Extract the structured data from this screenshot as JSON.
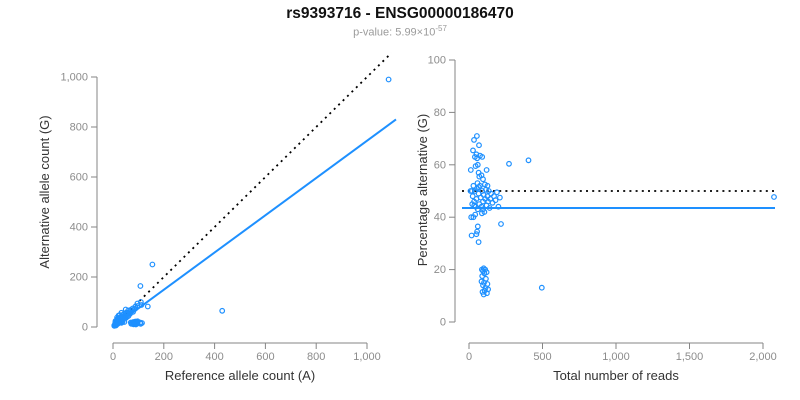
{
  "header": {
    "title": "rs9393716 - ENSG00000186470",
    "pvalue_prefix": "p-value: 5.99×10",
    "pvalue_exponent": "-57"
  },
  "colors": {
    "accent_blue": "#1E90FF",
    "dotted_black": "#000000",
    "axis_gray": "#858585",
    "tick_label_gray": "#8c8c8c",
    "axis_title_dark": "#333333"
  },
  "chart_data": [
    {
      "type": "scatter",
      "panel": "left",
      "xlabel": "Reference allele count (A)",
      "ylabel": "Alternative allele count (G)",
      "xlim": [
        0,
        1100
      ],
      "ylim": [
        0,
        1090
      ],
      "grid": false,
      "xticks": [
        0,
        200,
        400,
        600,
        800,
        1000
      ],
      "xtick_labels": [
        "0",
        "200",
        "400",
        "600",
        "800",
        "1,000"
      ],
      "yticks": [
        0,
        200,
        400,
        600,
        800,
        1000
      ],
      "ytick_labels": [
        "0",
        "200",
        "400",
        "600",
        "800",
        "1,000"
      ],
      "lines": [
        {
          "name": "identity-line",
          "slope": 1,
          "intercept": 0,
          "style": "dotted",
          "color_key": "dotted_black"
        },
        {
          "name": "fit-line",
          "slope": 0.745,
          "intercept": 0,
          "style": "solid",
          "color_key": "accent_blue"
        }
      ],
      "points": [
        [
          16,
          38
        ],
        [
          10,
          24
        ],
        [
          22,
          46
        ],
        [
          9,
          18
        ],
        [
          18,
          32
        ],
        [
          27,
          48
        ],
        [
          15,
          25
        ],
        [
          33,
          57
        ],
        [
          21,
          34
        ],
        [
          24,
          36
        ],
        [
          18,
          27
        ],
        [
          50,
          70
        ],
        [
          28,
          37
        ],
        [
          37,
          48
        ],
        [
          31,
          39
        ],
        [
          43,
          52
        ],
        [
          155,
          250
        ],
        [
          108,
          164
        ],
        [
          137,
          82
        ],
        [
          10,
          10
        ],
        [
          13,
          12
        ],
        [
          14,
          16
        ],
        [
          19,
          16
        ],
        [
          20,
          20
        ],
        [
          25,
          20
        ],
        [
          27,
          24
        ],
        [
          27,
          28
        ],
        [
          34,
          26
        ],
        [
          33,
          32
        ],
        [
          39,
          32
        ],
        [
          36,
          39
        ],
        [
          42,
          38
        ],
        [
          48,
          37
        ],
        [
          45,
          45
        ],
        [
          51,
          44
        ],
        [
          52,
          49
        ],
        [
          61,
          44
        ],
        [
          58,
          52
        ],
        [
          57,
          58
        ],
        [
          67,
          53
        ],
        [
          65,
          60
        ],
        [
          70,
          60
        ],
        [
          68,
          68
        ],
        [
          79,
          61
        ],
        [
          77,
          68
        ],
        [
          77,
          74
        ],
        [
          87,
          73
        ],
        [
          88,
          82
        ],
        [
          96,
          84
        ],
        [
          96,
          94
        ],
        [
          112,
          88
        ],
        [
          110,
          100
        ],
        [
          25,
          17
        ],
        [
          27,
          31
        ],
        [
          51,
          37
        ],
        [
          51,
          57
        ],
        [
          20,
          16
        ],
        [
          32,
          34
        ],
        [
          55,
          41
        ],
        [
          60,
          66
        ],
        [
          18,
          12
        ],
        [
          12,
          10
        ],
        [
          38,
          22
        ],
        [
          36,
          19
        ],
        [
          33,
          17
        ],
        [
          45,
          20
        ],
        [
          80,
          20
        ],
        [
          88,
          22
        ],
        [
          77,
          18
        ],
        [
          97,
          23
        ],
        [
          86,
          19
        ],
        [
          74,
          16
        ],
        [
          96,
          19
        ],
        [
          72,
          13
        ],
        [
          87,
          15
        ],
        [
          107,
          18
        ],
        [
          82,
          13
        ],
        [
          97,
          15
        ],
        [
          94,
          13
        ],
        [
          81,
          11
        ],
        [
          109,
          13
        ],
        [
          90,
          10
        ],
        [
          70,
          18
        ],
        [
          114,
          16
        ],
        [
          430,
          65
        ],
        [
          1085,
          990
        ],
        [
          5,
          5
        ],
        [
          9,
          6
        ],
        [
          5,
          7
        ],
        [
          12,
          6
        ]
      ]
    },
    {
      "type": "scatter",
      "panel": "right",
      "xlabel": "Total number of reads",
      "ylabel": "Percentage alternative (G)",
      "xlim": [
        0,
        2100
      ],
      "ylim": [
        0,
        100
      ],
      "grid": false,
      "xticks": [
        0,
        500,
        1000,
        1500,
        2000
      ],
      "xtick_labels": [
        "0",
        "500",
        "1,000",
        "1,500",
        "2,000"
      ],
      "yticks": [
        0,
        20,
        40,
        60,
        80,
        100
      ],
      "ytick_labels": [
        "0",
        "20",
        "40",
        "60",
        "80",
        "100"
      ],
      "lines": [
        {
          "name": "fifty-percent-line",
          "y": 50,
          "style": "dotted",
          "color_key": "dotted_black"
        },
        {
          "name": "fit-line",
          "y": 43.5,
          "style": "solid",
          "color_key": "accent_blue"
        }
      ],
      "points": [
        [
          54,
          71
        ],
        [
          34,
          69.5
        ],
        [
          68,
          67.5
        ],
        [
          27,
          65.5
        ],
        [
          50,
          64
        ],
        [
          75,
          63.5
        ],
        [
          40,
          63
        ],
        [
          90,
          63
        ],
        [
          55,
          62.5
        ],
        [
          60,
          60
        ],
        [
          45,
          59.5
        ],
        [
          120,
          58
        ],
        [
          65,
          57
        ],
        [
          85,
          56
        ],
        [
          70,
          55.5
        ],
        [
          95,
          54.5
        ],
        [
          405,
          61.7
        ],
        [
          272,
          60.4
        ],
        [
          218,
          37.4
        ],
        [
          20,
          50
        ],
        [
          25,
          48
        ],
        [
          30,
          52
        ],
        [
          35,
          46
        ],
        [
          40,
          50
        ],
        [
          45,
          44
        ],
        [
          50,
          47
        ],
        [
          55,
          51
        ],
        [
          60,
          43
        ],
        [
          65,
          49
        ],
        [
          70,
          45
        ],
        [
          75,
          52
        ],
        [
          80,
          47.5
        ],
        [
          85,
          44
        ],
        [
          90,
          50
        ],
        [
          95,
          46
        ],
        [
          100,
          48.5
        ],
        [
          105,
          42
        ],
        [
          110,
          47
        ],
        [
          115,
          50.5
        ],
        [
          120,
          44.5
        ],
        [
          125,
          48
        ],
        [
          130,
          46
        ],
        [
          135,
          50
        ],
        [
          140,
          43.5
        ],
        [
          145,
          47
        ],
        [
          150,
          49
        ],
        [
          160,
          45.5
        ],
        [
          170,
          48
        ],
        [
          180,
          46.5
        ],
        [
          190,
          49.5
        ],
        [
          200,
          44
        ],
        [
          210,
          47.5
        ],
        [
          42,
          41
        ],
        [
          58,
          53
        ],
        [
          88,
          41.5
        ],
        [
          108,
          52.5
        ],
        [
          36,
          44.5
        ],
        [
          66,
          51.5
        ],
        [
          96,
          43
        ],
        [
          126,
          52
        ],
        [
          30,
          40
        ],
        [
          22,
          45
        ],
        [
          60,
          36.5
        ],
        [
          55,
          34.5
        ],
        [
          50,
          33.5
        ],
        [
          65,
          30.5
        ],
        [
          100,
          20.5
        ],
        [
          110,
          20
        ],
        [
          95,
          19.5
        ],
        [
          120,
          19
        ],
        [
          105,
          18.5
        ],
        [
          90,
          17.5
        ],
        [
          115,
          16.5
        ],
        [
          85,
          15.5
        ],
        [
          102,
          15
        ],
        [
          125,
          14.5
        ],
        [
          95,
          14
        ],
        [
          112,
          13
        ],
        [
          107,
          12
        ],
        [
          92,
          11.5
        ],
        [
          122,
          11
        ],
        [
          100,
          10.5
        ],
        [
          88,
          20
        ],
        [
          130,
          12.5
        ],
        [
          495,
          13.1
        ],
        [
          2075,
          47.7
        ],
        [
          10,
          50
        ],
        [
          15,
          40
        ],
        [
          12,
          58
        ],
        [
          18,
          33
        ]
      ]
    }
  ]
}
